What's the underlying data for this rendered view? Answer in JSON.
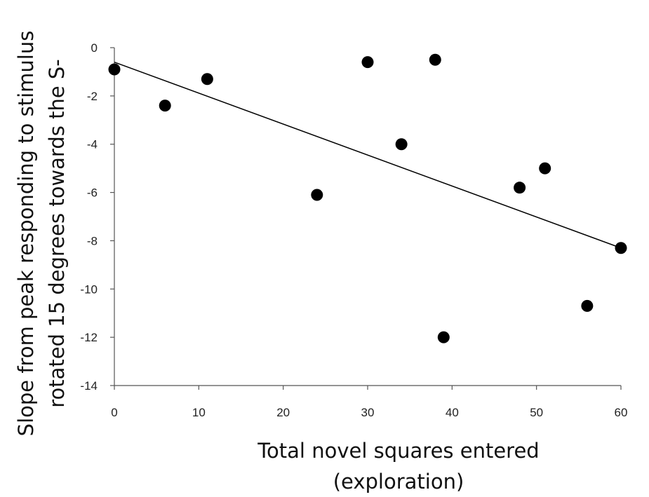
{
  "chart_data": {
    "type": "scatter",
    "title": "",
    "xlabel_lines": [
      "Total novel squares entered",
      "(exploration)"
    ],
    "ylabel_lines": [
      "Slope from peak responding to stimulus",
      "rotated 15 degrees towards the S-"
    ],
    "xlim": [
      0,
      60
    ],
    "ylim": [
      -14,
      0
    ],
    "xticks": [
      0,
      10,
      20,
      30,
      40,
      50,
      60
    ],
    "yticks": [
      0,
      -2,
      -4,
      -6,
      -8,
      -10,
      -12,
      -14
    ],
    "grid": false,
    "legend": "none",
    "series": [
      {
        "marker": "circle",
        "color": "#000000",
        "points": [
          {
            "x": 0,
            "y": -0.9
          },
          {
            "x": 6,
            "y": -2.4
          },
          {
            "x": 11,
            "y": -1.3
          },
          {
            "x": 24,
            "y": -6.1
          },
          {
            "x": 30,
            "y": -0.6
          },
          {
            "x": 34,
            "y": -4.0
          },
          {
            "x": 38,
            "y": -0.5
          },
          {
            "x": 39,
            "y": -12.0
          },
          {
            "x": 48,
            "y": -5.8
          },
          {
            "x": 51,
            "y": -5.0
          },
          {
            "x": 56,
            "y": -10.7
          },
          {
            "x": 60,
            "y": -8.3
          }
        ]
      }
    ],
    "trendline": {
      "type": "linear",
      "color": "#000000",
      "x": [
        0,
        60
      ],
      "y": [
        -0.6,
        -8.3
      ]
    }
  }
}
